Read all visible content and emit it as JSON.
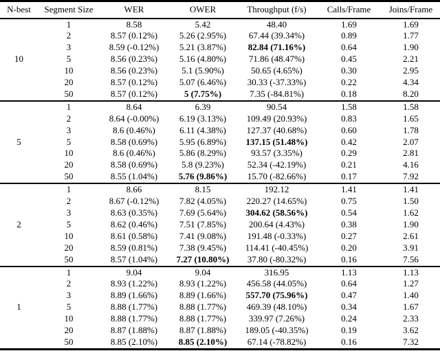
{
  "chart_data": {
    "type": "table",
    "columns": [
      "N-best",
      "Segment Size",
      "WER",
      "OWER",
      "Throughput (f/s)",
      "Calls/Frame",
      "Joins/Frame"
    ],
    "groups": [
      {
        "n_best": "10",
        "rows": [
          {
            "cells": [
              "1",
              "8.58",
              "5.42",
              "48.40",
              "1.69",
              "1.69"
            ],
            "bold": null
          },
          {
            "cells": [
              "2",
              "8.57 (0.12%)",
              "5.26 (2.95%)",
              "67.44 (39.34%)",
              "0.89",
              "1.77"
            ],
            "bold": null
          },
          {
            "cells": [
              "3",
              "8.59 (-0.12%)",
              "5.21 (3.87%)",
              "82.84 (71.16%)",
              "0.64",
              "1.90"
            ],
            "bold": "throughput"
          },
          {
            "cells": [
              "5",
              "8.56 (0.23%)",
              "5.16 (4.80%)",
              "71.86 (48.47%)",
              "0.45",
              "2.21"
            ],
            "bold": null
          },
          {
            "cells": [
              "10",
              "8.56 (0.23%)",
              "5.1 (5.90%)",
              "50.65 (4.65%)",
              "0.30",
              "2.95"
            ],
            "bold": null
          },
          {
            "cells": [
              "20",
              "8.57 (0.12%)",
              "5.07 (6.46%)",
              "30.33 (-37.33%)",
              "0.22",
              "4.34"
            ],
            "bold": null
          },
          {
            "cells": [
              "50",
              "8.57 (0.12%)",
              "5 (7.75%)",
              "7.35 (-84.81%)",
              "0.18",
              "8.20"
            ],
            "bold": "ower"
          }
        ]
      },
      {
        "n_best": "5",
        "rows": [
          {
            "cells": [
              "1",
              "8.64",
              "6.39",
              "90.54",
              "1.58",
              "1.58"
            ],
            "bold": null
          },
          {
            "cells": [
              "2",
              "8.64 (-0.00%)",
              "6.19 (3.13%)",
              "109.49 (20.93%)",
              "0.83",
              "1.65"
            ],
            "bold": null
          },
          {
            "cells": [
              "3",
              "8.6 (0.46%)",
              "6.11 (4.38%)",
              "127.37 (40.68%)",
              "0.60",
              "1.78"
            ],
            "bold": null
          },
          {
            "cells": [
              "5",
              "8.58 (0.69%)",
              "5.95 (6.89%)",
              "137.15 (51.48%)",
              "0.42",
              "2.07"
            ],
            "bold": "throughput"
          },
          {
            "cells": [
              "10",
              "8.6 (0.46%)",
              "5.86 (8.29%)",
              "93.57 (3.35%)",
              "0.29",
              "2.81"
            ],
            "bold": null
          },
          {
            "cells": [
              "20",
              "8.58 (0.69%)",
              "5.8 (9.23%)",
              "52.34 (-42.19%)",
              "0.21",
              "4.16"
            ],
            "bold": null
          },
          {
            "cells": [
              "50",
              "8.55 (1.04%)",
              "5.76 (9.86%)",
              "15.70 (-82.66%)",
              "0.17",
              "7.92"
            ],
            "bold": "ower"
          }
        ]
      },
      {
        "n_best": "2",
        "rows": [
          {
            "cells": [
              "1",
              "8.66",
              "8.15",
              "192.12",
              "1.41",
              "1.41"
            ],
            "bold": null
          },
          {
            "cells": [
              "2",
              "8.67 (-0.12%)",
              "7.82 (4.05%)",
              "220.27 (14.65%)",
              "0.75",
              "1.50"
            ],
            "bold": null
          },
          {
            "cells": [
              "3",
              "8.63 (0.35%)",
              "7.69 (5.64%)",
              "304.62 (58.56%)",
              "0.54",
              "1.62"
            ],
            "bold": "throughput"
          },
          {
            "cells": [
              "5",
              "8.62 (0.46%)",
              "7.51 (7.85%)",
              "200.64 (4.43%)",
              "0.38",
              "1.90"
            ],
            "bold": null
          },
          {
            "cells": [
              "10",
              "8.61 (0.58%)",
              "7.41 (9.08%)",
              "191.48 (-0.33%)",
              "0.27",
              "2.61"
            ],
            "bold": null
          },
          {
            "cells": [
              "20",
              "8.59 (0.81%)",
              "7.38 (9.45%)",
              "114.41 (-40.45%)",
              "0.20",
              "3.91"
            ],
            "bold": null
          },
          {
            "cells": [
              "50",
              "8.57 (1.04%)",
              "7.27 (10.80%)",
              "37.80 (-80.32%)",
              "0.16",
              "7.56"
            ],
            "bold": "ower"
          }
        ]
      },
      {
        "n_best": "1",
        "rows": [
          {
            "cells": [
              "1",
              "9.04",
              "9.04",
              "316.95",
              "1.13",
              "1.13"
            ],
            "bold": null
          },
          {
            "cells": [
              "2",
              "8.93 (1.22%)",
              "8.93 (1.22%)",
              "456.58 (44.05%)",
              "0.64",
              "1.27"
            ],
            "bold": null
          },
          {
            "cells": [
              "3",
              "8.89 (1.66%)",
              "8.89 (1.66%)",
              "557.70 (75.96%)",
              "0.47",
              "1.40"
            ],
            "bold": "throughput"
          },
          {
            "cells": [
              "5",
              "8.88 (1.77%)",
              "8.88 (1.77%)",
              "469.39 (48.10%)",
              "0.34",
              "1.67"
            ],
            "bold": null
          },
          {
            "cells": [
              "10",
              "8.88 (1.77%)",
              "8.88 (1.77%)",
              "339.97 (7.26%)",
              "0.24",
              "2.33"
            ],
            "bold": null
          },
          {
            "cells": [
              "20",
              "8.87 (1.88%)",
              "8.87 (1.88%)",
              "189.05 (-40.35%)",
              "0.19",
              "3.62"
            ],
            "bold": null
          },
          {
            "cells": [
              "50",
              "8.85 (2.10%)",
              "8.85 (2.10%)",
              "67.14 (-78.82%)",
              "0.16",
              "7.32"
            ],
            "bold": "ower"
          }
        ]
      }
    ],
    "colors": {
      "text": "#000000",
      "background": "#ffffff",
      "rule": "#000000"
    }
  }
}
